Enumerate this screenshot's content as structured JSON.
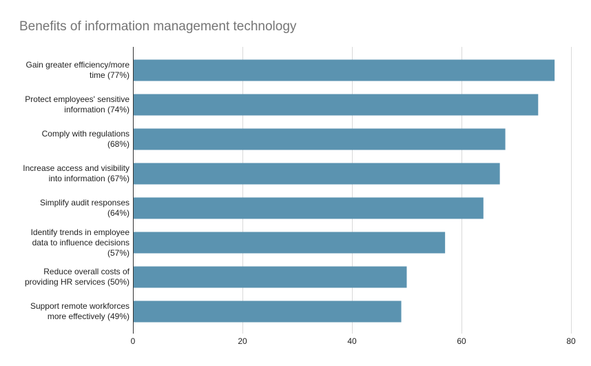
{
  "chart_data": {
    "type": "bar",
    "orientation": "horizontal",
    "title": "Benefits of information management technology",
    "xlabel": "",
    "ylabel": "",
    "categories": [
      [
        "Gain greater efficiency/more",
        "time (77%)"
      ],
      [
        "Protect employees' sensitive",
        "information (74%)"
      ],
      [
        "Comply with regulations",
        "(68%)"
      ],
      [
        "Increase access and visibility",
        "into information (67%)"
      ],
      [
        "Simplify audit responses",
        "(64%)"
      ],
      [
        "Identify trends in employee",
        "data to influence decisions",
        "(57%)"
      ],
      [
        "Reduce overall costs of",
        "providing HR services (50%)"
      ],
      [
        "Support remote workforces",
        "more effectively (49%)"
      ]
    ],
    "values": [
      77,
      74,
      68,
      67,
      64,
      57,
      50,
      49
    ],
    "xlim": [
      0,
      80
    ],
    "xticks": [
      "0",
      "20",
      "40",
      "60",
      "80"
    ],
    "grid": true,
    "bar_color": "#5b93b0",
    "gridline_color": "#d9d9d9",
    "axis_color": "#333333"
  }
}
